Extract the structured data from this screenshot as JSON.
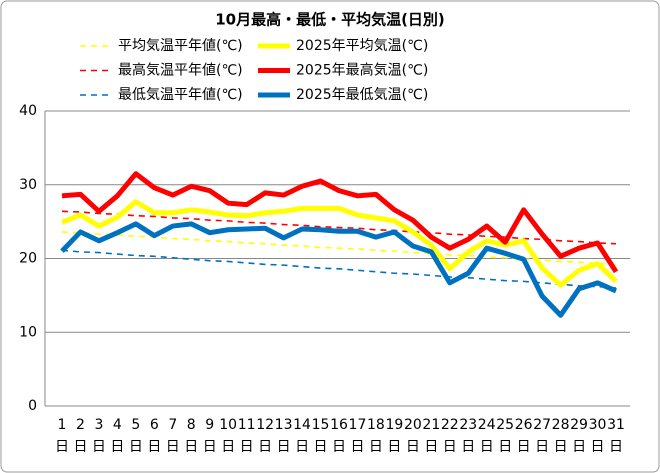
{
  "chart_data": {
    "type": "line",
    "title": "10月最高・最低・平均気温(日別)",
    "categories": [
      "1日",
      "2日",
      "3日",
      "4日",
      "5日",
      "6日",
      "7日",
      "8日",
      "9日",
      "10日",
      "11日",
      "12日",
      "13日",
      "14日",
      "15日",
      "16日",
      "17日",
      "18日",
      "19日",
      "20日",
      "21日",
      "22日",
      "23日",
      "24日",
      "25日",
      "26日",
      "27日",
      "28日",
      "29日",
      "30日",
      "31日"
    ],
    "ylim": [
      0,
      40
    ],
    "yticks": [
      0,
      10,
      20,
      30,
      40
    ],
    "series": [
      {
        "name": "平均気温平年値(℃)",
        "color": "#ffff00",
        "dashed": true,
        "values": [
          23.6,
          23.5,
          23.3,
          23.2,
          23.0,
          22.9,
          22.7,
          22.6,
          22.4,
          22.3,
          22.1,
          22.0,
          21.8,
          21.7,
          21.5,
          21.4,
          21.3,
          21.1,
          21.0,
          20.8,
          20.7,
          20.5,
          20.4,
          20.2,
          20.1,
          19.9,
          19.8,
          19.6,
          19.5,
          19.3,
          19.2
        ]
      },
      {
        "name": "2025年平均気温(℃)",
        "color": "#ffff00",
        "dashed": false,
        "values": [
          24.9,
          25.9,
          24.4,
          25.6,
          27.7,
          26.2,
          26.2,
          26.6,
          26.3,
          25.9,
          25.8,
          26.2,
          26.4,
          26.8,
          26.8,
          26.8,
          25.9,
          25.5,
          25.1,
          23.6,
          21.8,
          18.6,
          20.9,
          22.4,
          21.8,
          22.4,
          18.7,
          16.4,
          18.4,
          19.3,
          16.9
        ]
      },
      {
        "name": "最高気温平年値(℃)",
        "color": "#ff0000",
        "dashed": true,
        "values": [
          26.4,
          26.3,
          26.1,
          26.0,
          25.8,
          25.7,
          25.5,
          25.4,
          25.2,
          25.1,
          24.9,
          24.8,
          24.6,
          24.5,
          24.3,
          24.2,
          24.1,
          23.9,
          23.8,
          23.6,
          23.5,
          23.3,
          23.2,
          23.0,
          22.9,
          22.7,
          22.6,
          22.4,
          22.3,
          22.1,
          22.0
        ]
      },
      {
        "name": "2025年最高気温(℃)",
        "color": "#ff0000",
        "dashed": false,
        "values": [
          28.5,
          28.7,
          26.4,
          28.5,
          31.5,
          29.6,
          28.6,
          29.8,
          29.2,
          27.5,
          27.3,
          28.9,
          28.6,
          29.8,
          30.5,
          29.2,
          28.5,
          28.7,
          26.6,
          25.2,
          22.9,
          21.4,
          22.6,
          24.4,
          22.2,
          26.6,
          23.3,
          20.3,
          21.4,
          22.1,
          18.2
        ]
      },
      {
        "name": "最低気温平年値(℃)",
        "color": "#0070c0",
        "dashed": true,
        "values": [
          21.1,
          20.9,
          20.8,
          20.6,
          20.4,
          20.3,
          20.1,
          19.9,
          19.7,
          19.6,
          19.4,
          19.2,
          19.1,
          18.9,
          18.7,
          18.6,
          18.4,
          18.2,
          18.0,
          17.9,
          17.7,
          17.5,
          17.4,
          17.2,
          17.0,
          16.9,
          16.7,
          16.5,
          16.3,
          16.2,
          16.0
        ]
      },
      {
        "name": "2025年最低気温(℃)",
        "color": "#0070c0",
        "dashed": false,
        "values": [
          21.0,
          23.6,
          22.4,
          23.5,
          24.7,
          23.1,
          24.4,
          24.7,
          23.5,
          23.9,
          24.0,
          24.1,
          22.8,
          24.0,
          23.9,
          23.7,
          23.7,
          22.9,
          23.6,
          21.7,
          20.9,
          16.7,
          18.0,
          21.4,
          20.7,
          19.9,
          14.9,
          12.3,
          15.9,
          16.7,
          15.6
        ]
      }
    ],
    "grid": true
  }
}
